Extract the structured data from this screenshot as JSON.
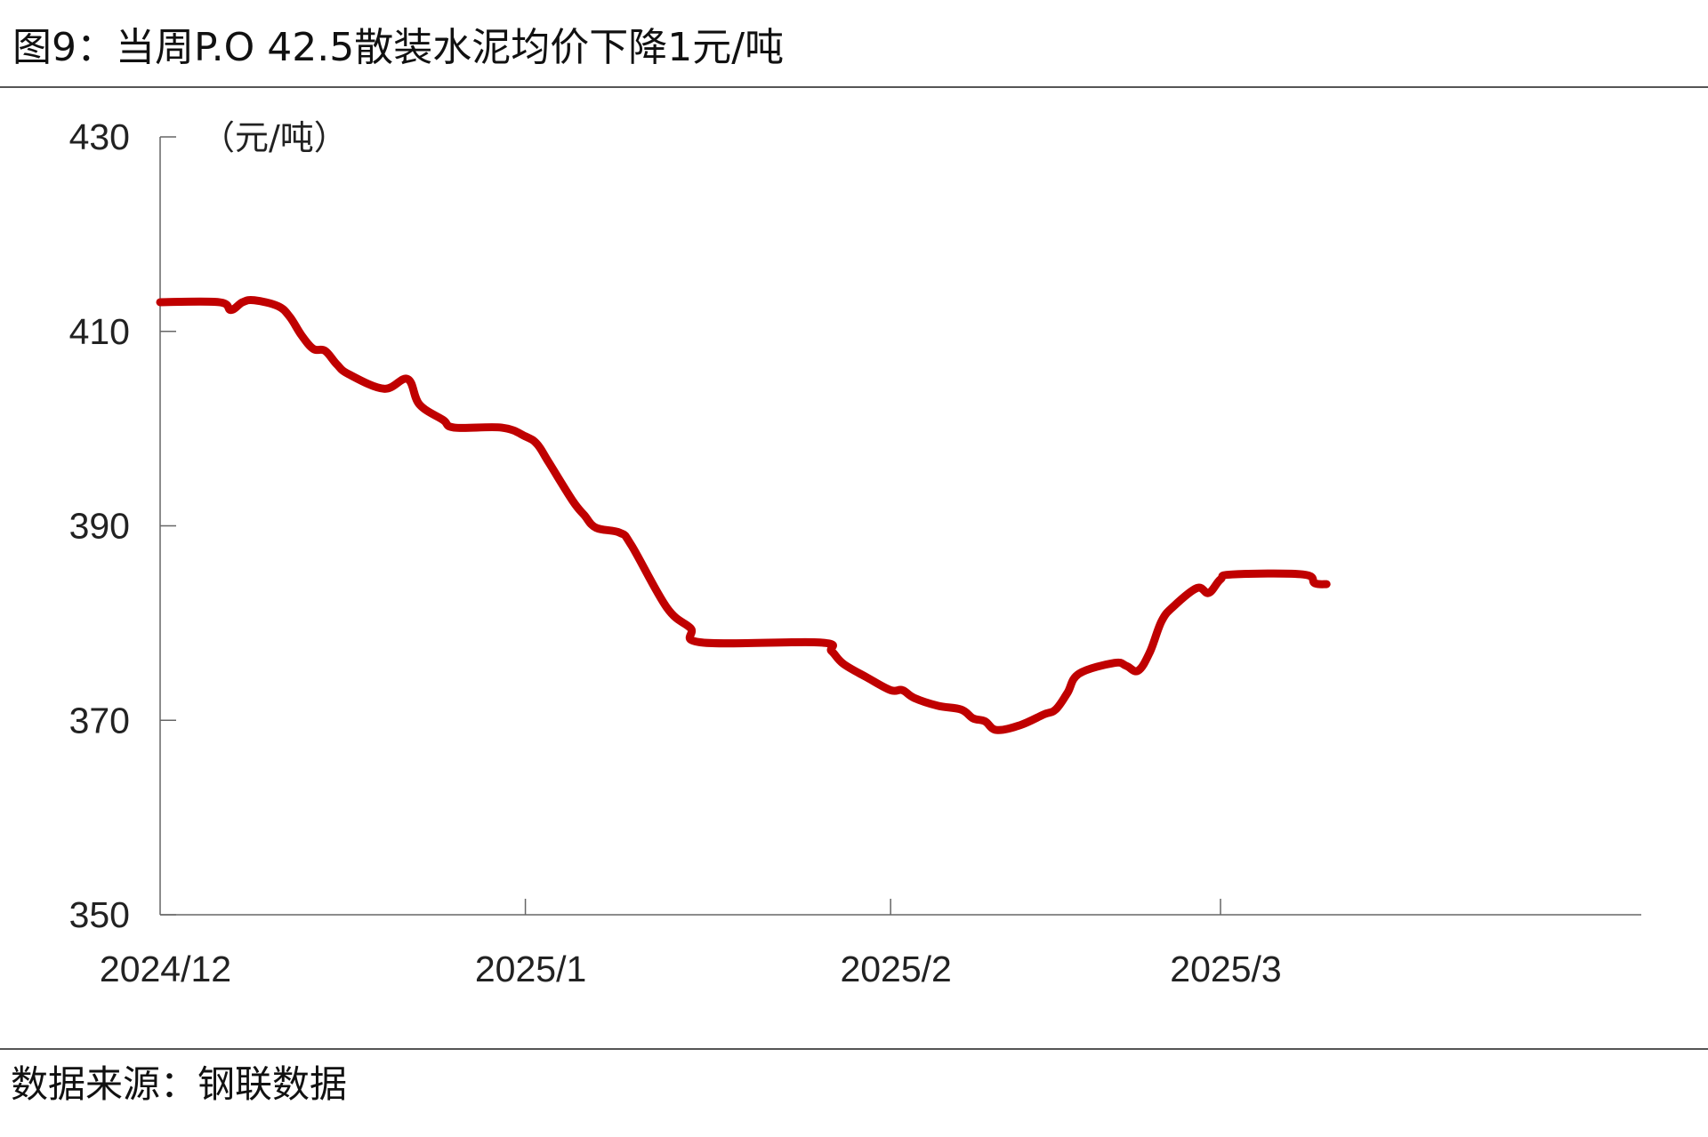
{
  "title": "图9：当周P.O 42.5散装水泥均价下降1元/吨",
  "source": "数据来源：钢联数据",
  "chart_data": {
    "type": "line",
    "title": "图9：当周P.O 42.5散装水泥均价下降1元/吨",
    "ylabel": "（元/吨）",
    "xlabel": "",
    "ylim": [
      350,
      430
    ],
    "yticks": [
      350,
      370,
      390,
      410,
      430
    ],
    "xlim": [
      "2024-12-01",
      "2025-03-10"
    ],
    "xticks": [
      {
        "date": "2024-12-01",
        "label": "2024/12"
      },
      {
        "date": "2025-01-01",
        "label": "2025/1"
      },
      {
        "date": "2025-02-01",
        "label": "2025/2"
      },
      {
        "date": "2025-03-01",
        "label": "2025/3"
      }
    ],
    "grid": false,
    "color": "#C00000",
    "series": [
      {
        "x": [
          "2024-12-01",
          "2024-12-06",
          "2024-12-07",
          "2024-12-08",
          "2024-12-09",
          "2024-12-11",
          "2024-12-12",
          "2024-12-13",
          "2024-12-14",
          "2024-12-15",
          "2024-12-16",
          "2024-12-17",
          "2024-12-20",
          "2024-12-22",
          "2024-12-23",
          "2024-12-25",
          "2024-12-26",
          "2024-12-30",
          "2025-01-01",
          "2025-01-02",
          "2025-01-03",
          "2025-01-05",
          "2025-01-06",
          "2025-01-07",
          "2025-01-09",
          "2025-01-10",
          "2025-01-13",
          "2025-01-15",
          "2025-01-16",
          "2025-01-26",
          "2025-01-27",
          "2025-01-28",
          "2025-01-30",
          "2025-02-01",
          "2025-02-02",
          "2025-02-03",
          "2025-02-05",
          "2025-02-07",
          "2025-02-08",
          "2025-02-09",
          "2025-02-10",
          "2025-02-12",
          "2025-02-14",
          "2025-02-15",
          "2025-02-16",
          "2025-02-17",
          "2025-02-20",
          "2025-02-21",
          "2025-02-22",
          "2025-02-23",
          "2025-02-24",
          "2025-02-25",
          "2025-02-27",
          "2025-02-28",
          "2025-03-01",
          "2025-03-02",
          "2025-03-08",
          "2025-03-09",
          "2025-03-10"
        ],
        "values": [
          413,
          413,
          412.2,
          413,
          413.2,
          412.6,
          411.5,
          409.6,
          408.2,
          408.0,
          406.6,
          405.6,
          404.1,
          405.1,
          402.5,
          400.9,
          400.1,
          400.1,
          399.2,
          398.4,
          396.5,
          392.6,
          391.1,
          389.8,
          389.3,
          388.0,
          381.6,
          379.5,
          378.0,
          378.0,
          377.1,
          375.8,
          374.4,
          373.1,
          373.1,
          372.3,
          371.5,
          371.1,
          370.2,
          369.9,
          369.0,
          369.5,
          370.6,
          371.1,
          372.8,
          374.8,
          375.9,
          375.6,
          375.1,
          377.0,
          380.2,
          381.7,
          383.6,
          383.1,
          384.5,
          385.0,
          385.0,
          384.1,
          384.0
        ]
      }
    ]
  }
}
